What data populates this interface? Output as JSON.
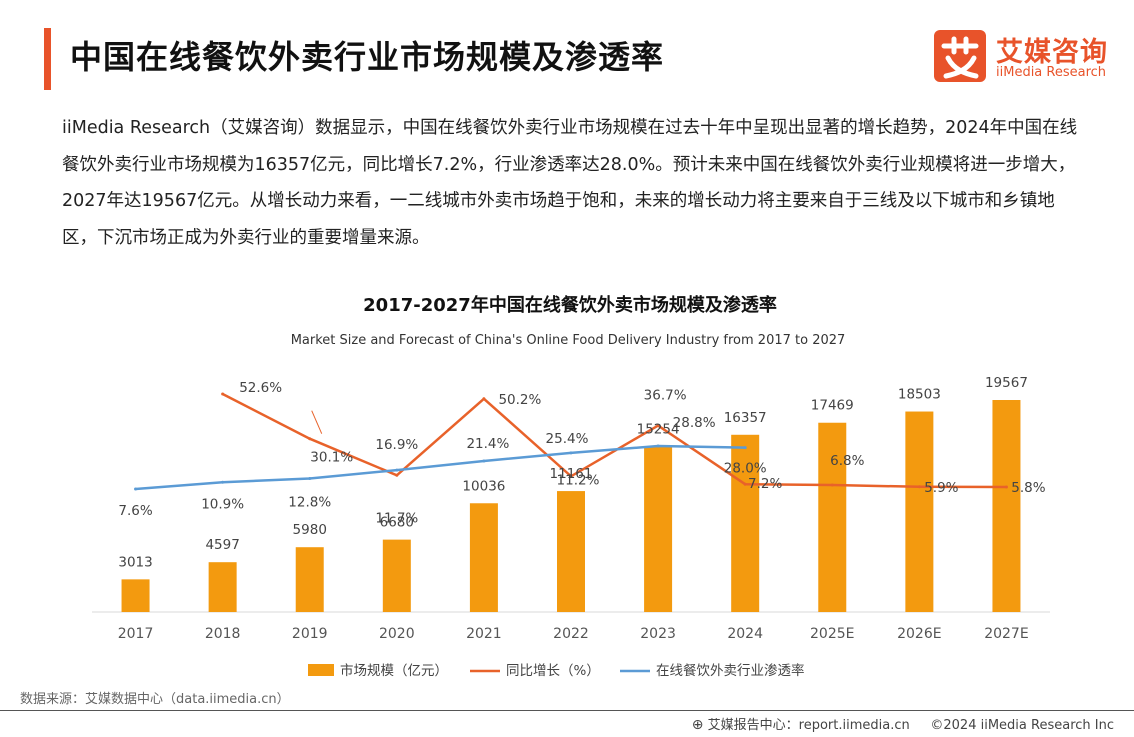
{
  "header": {
    "title": "中国在线餐饮外卖行业市场规模及渗透率",
    "logo_cn": "艾媒咨询",
    "logo_en": "iiMedia Research"
  },
  "intro_text": "iiMedia Research（艾媒咨询）数据显示，中国在线餐饮外卖行业市场规模在过去十年中呈现出显著的增长趋势，2024年中国在线餐饮外卖行业市场规模为16357亿元，同比增长7.2%，行业渗透率达28.0%。预计未来中国在线餐饮外卖行业规模将进一步增大，2027年达19567亿元。从增长动力来看，一二线城市外卖市场趋于饱和，未来的增长动力将主要来自于三线及以下城市和乡镇地区，下沉市场正成为外卖行业的重要增量来源。",
  "chart_data": {
    "type": "bar",
    "title": "2017-2027年中国在线餐饮外卖市场规模及渗透率",
    "subtitle": "Market Size and Forecast of China's Online Food Delivery Industry from 2017 to 2027",
    "categories": [
      "2017",
      "2018",
      "2019",
      "2020",
      "2021",
      "2022",
      "2023",
      "2024",
      "2025E",
      "2026E",
      "2027E"
    ],
    "series": [
      {
        "name": "市场规模（亿元）",
        "type": "bar",
        "values": [
          3013,
          4597,
          5980,
          6680,
          10036,
          11161,
          15254,
          16357,
          17469,
          18503,
          19567
        ],
        "labels": [
          "3013",
          "4597",
          "5980",
          "6680",
          "10036",
          "11161",
          "15254",
          "16357",
          "17469",
          "18503",
          "19567"
        ],
        "color": "#f39a0f"
      },
      {
        "name": "同比增长（%）",
        "type": "line",
        "values": [
          null,
          52.6,
          30.1,
          11.7,
          50.2,
          11.2,
          36.7,
          7.2,
          6.8,
          5.9,
          5.8
        ],
        "labels": [
          "",
          "52.6%",
          "30.1%",
          "11.7%",
          "50.2%",
          "11.2%",
          "36.7%",
          "7.2%",
          "6.8%",
          "5.9%",
          "5.8%"
        ],
        "color": "#e8622a"
      },
      {
        "name": "在线餐饮外卖行业渗透率",
        "type": "line",
        "values": [
          7.6,
          10.9,
          12.8,
          16.9,
          21.4,
          25.4,
          28.8,
          28.0,
          null,
          null,
          null
        ],
        "labels": [
          "7.6%",
          "10.9%",
          "12.8%",
          "16.9%",
          "21.4%",
          "25.4%",
          "28.8%",
          "28.0%",
          "",
          "",
          ""
        ],
        "color": "#5b9bd5"
      }
    ],
    "bar_ylim": [
      0,
      30000
    ],
    "legend_position": "bottom",
    "grid": false
  },
  "source": "数据来源：艾媒数据中心（data.iimedia.cn）",
  "footer": {
    "report_label": "艾媒报告中心：report.iimedia.cn",
    "copyright": "©2024  iiMedia Research  Inc"
  },
  "colors": {
    "accent": "#e8532a",
    "bar": "#f39a0f",
    "growth_line": "#e8622a",
    "penetration_line": "#5b9bd5"
  }
}
